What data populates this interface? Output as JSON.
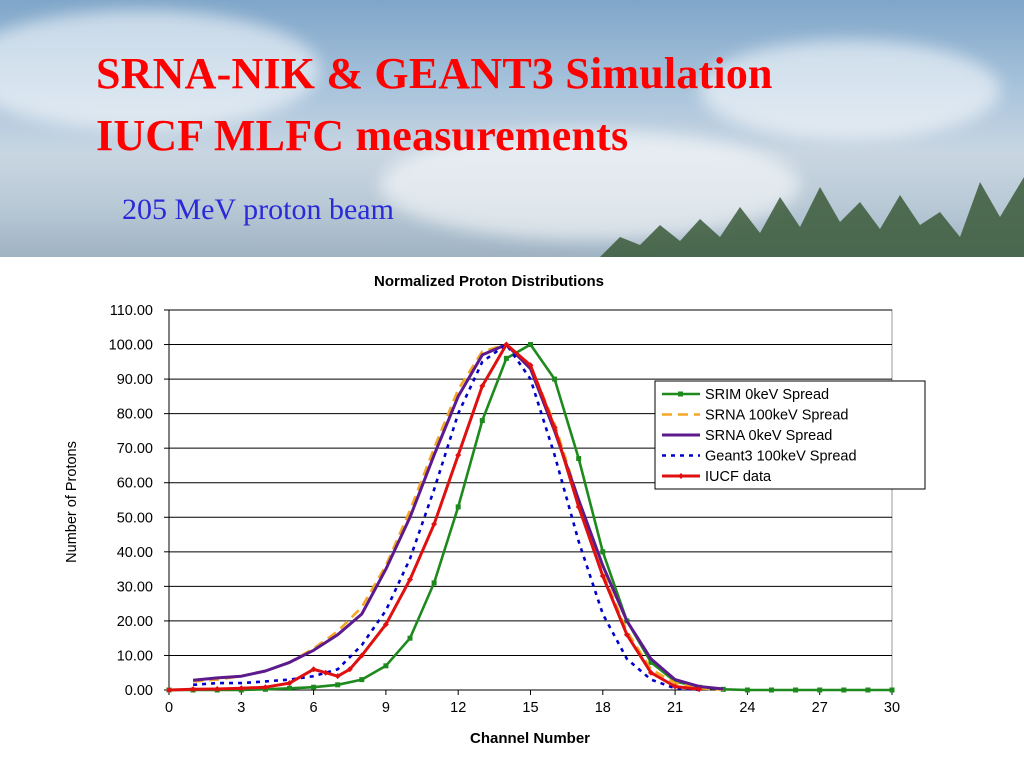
{
  "slide": {
    "title_line1": "SRNA-NIK & GEANT3 Simulation",
    "title_line2": "IUCF MLFC measurements",
    "subtitle": "205 MeV proton beam"
  },
  "colors": {
    "title": "#ff0000",
    "subtitle": "#2a2ad8",
    "srim": "#1e8a1e",
    "srna100": "#f5a623",
    "srna0": "#5c1a8c",
    "geant3": "#0000cc",
    "iucf": "#e01010"
  },
  "chart_data": {
    "type": "line",
    "title": "Normalized Proton Distributions",
    "xlabel": "Channel Number",
    "ylabel": "Number of Protons",
    "xlim": [
      0,
      30
    ],
    "ylim": [
      0,
      110
    ],
    "xticks": [
      "0",
      "3",
      "6",
      "9",
      "12",
      "15",
      "18",
      "21",
      "24",
      "27",
      "30"
    ],
    "yticks": [
      "0.00",
      "10.00",
      "20.00",
      "30.00",
      "40.00",
      "50.00",
      "60.00",
      "70.00",
      "80.00",
      "90.00",
      "100.00",
      "110.00"
    ],
    "grid": "horizontal",
    "legend_position": "right",
    "series": [
      {
        "name": "SRIM 0keV Spread",
        "color": "#1e8a1e",
        "style": "solid-square-markers",
        "x": [
          0,
          1,
          2,
          3,
          4,
          5,
          6,
          7,
          8,
          9,
          10,
          11,
          12,
          13,
          14,
          15,
          16,
          17,
          18,
          19,
          20,
          21,
          22,
          23,
          24,
          25,
          26,
          27,
          28,
          29,
          30
        ],
        "y": [
          0,
          0,
          0,
          0,
          0.2,
          0.5,
          0.8,
          1.5,
          3,
          7,
          15,
          31,
          53,
          78,
          96,
          100,
          90,
          67,
          40,
          20,
          8,
          2.5,
          0.8,
          0.2,
          0,
          0,
          0,
          0,
          0,
          0,
          0
        ]
      },
      {
        "name": "SRNA 100keV Spread",
        "color": "#f5a623",
        "style": "dashed",
        "x": [
          1,
          2,
          3,
          4,
          5,
          6,
          7,
          8,
          9,
          10,
          11,
          12,
          13,
          14,
          15,
          16,
          17,
          18,
          19,
          20,
          21,
          22,
          23
        ],
        "y": [
          2.5,
          3,
          4,
          5.5,
          8,
          12,
          17,
          24,
          36,
          52,
          70,
          87,
          98,
          100,
          94,
          77,
          55,
          34,
          17,
          6,
          2,
          0.5,
          0.1
        ]
      },
      {
        "name": "SRNA 0keV Spread",
        "color": "#5c1a8c",
        "style": "solid",
        "x": [
          1,
          2,
          3,
          4,
          5,
          6,
          7,
          8,
          9,
          10,
          11,
          12,
          13,
          14,
          15,
          16,
          17,
          18,
          19,
          20,
          21,
          22,
          23
        ],
        "y": [
          2.8,
          3.5,
          4,
          5.5,
          8,
          11.5,
          16,
          22,
          35,
          50,
          68,
          85,
          97,
          100,
          93,
          75,
          55,
          36,
          20,
          9,
          3,
          1,
          0.3
        ]
      },
      {
        "name": "Geant3 100keV Spread",
        "color": "#0000cc",
        "style": "dotted",
        "x": [
          1,
          2,
          3,
          4,
          5,
          6,
          7,
          8,
          9,
          10,
          11,
          12,
          13,
          14,
          15,
          16,
          17,
          18,
          19,
          20,
          21,
          22
        ],
        "y": [
          1.5,
          2,
          2,
          2.5,
          3,
          4,
          6,
          13,
          23,
          38,
          58,
          80,
          95,
          100,
          90,
          68,
          43,
          22,
          9,
          3,
          0.5,
          0
        ]
      },
      {
        "name": "IUCF data",
        "color": "#e01010",
        "style": "solid-diamond-markers",
        "x": [
          0,
          1,
          2,
          3,
          4,
          5,
          6,
          6.5,
          7,
          7.5,
          8,
          9,
          10,
          11,
          12,
          13,
          14,
          15,
          16,
          17,
          18,
          19,
          20,
          21,
          22
        ],
        "y": [
          0,
          0.2,
          0.3,
          0.5,
          0.8,
          2,
          6,
          5,
          4,
          6,
          10,
          19,
          32,
          48,
          68,
          88,
          100,
          94,
          76,
          53,
          33,
          16,
          5,
          1,
          0.2
        ]
      }
    ]
  }
}
